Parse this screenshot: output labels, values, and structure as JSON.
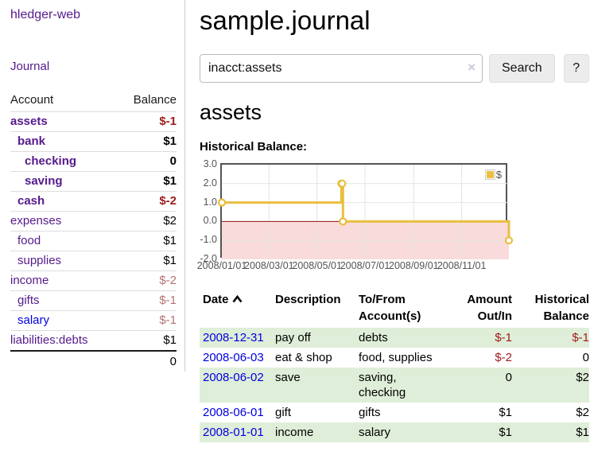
{
  "app": {
    "brand": "hledger-web"
  },
  "sidebar": {
    "nav": {
      "journal_label": "Journal"
    },
    "accounts": {
      "headers": {
        "account": "Account",
        "balance": "Balance"
      },
      "rows": [
        {
          "name": "assets",
          "depth": 1,
          "bold": true,
          "balance": "$-1",
          "neg": "neg-strong",
          "link": "purple"
        },
        {
          "name": "bank",
          "depth": 2,
          "bold": true,
          "balance": "$1",
          "neg": "",
          "link": "purple"
        },
        {
          "name": "checking",
          "depth": 3,
          "bold": true,
          "balance": "0",
          "neg": "",
          "link": "purple"
        },
        {
          "name": "saving",
          "depth": 3,
          "bold": true,
          "balance": "$1",
          "neg": "",
          "link": "purple"
        },
        {
          "name": "cash",
          "depth": 2,
          "bold": true,
          "balance": "$-2",
          "neg": "neg-strong",
          "link": "purple"
        },
        {
          "name": "expenses",
          "depth": 1,
          "bold": false,
          "balance": "$2",
          "neg": "",
          "link": "purple"
        },
        {
          "name": "food",
          "depth": 2,
          "bold": false,
          "balance": "$1",
          "neg": "",
          "link": "purple"
        },
        {
          "name": "supplies",
          "depth": 2,
          "bold": false,
          "balance": "$1",
          "neg": "",
          "link": "purple"
        },
        {
          "name": "income",
          "depth": 1,
          "bold": false,
          "balance": "$-2",
          "neg": "neg-soft",
          "link": "purple"
        },
        {
          "name": "gifts",
          "depth": 2,
          "bold": false,
          "balance": "$-1",
          "neg": "neg-soft",
          "link": "purple"
        },
        {
          "name": "salary",
          "depth": 2,
          "bold": false,
          "balance": "$-1",
          "neg": "neg-soft",
          "link": "blue"
        },
        {
          "name": "liabilities:debts",
          "depth": 1,
          "bold": false,
          "balance": "$1",
          "neg": "",
          "link": "purple"
        }
      ],
      "total": "0"
    }
  },
  "header": {
    "title": "sample.journal"
  },
  "search": {
    "value": "inacct:assets",
    "clear_icon": "×",
    "button_label": "Search",
    "help_label": "?"
  },
  "account_page": {
    "title": "assets",
    "chart_label": "Historical Balance:"
  },
  "chart_data": {
    "type": "line",
    "style": "step",
    "title": "Historical Balance",
    "series": [
      {
        "name": "$",
        "color": "#e8bf40",
        "points": [
          {
            "x": "2008-01-01",
            "y": 1
          },
          {
            "x": "2008-06-01",
            "y": 2
          },
          {
            "x": "2008-06-02",
            "y": 2
          },
          {
            "x": "2008-06-03",
            "y": 0
          },
          {
            "x": "2008-12-31",
            "y": -1
          }
        ]
      }
    ],
    "xrange": [
      "2008-01-01",
      "2008-12-31"
    ],
    "ylim": [
      -2,
      3
    ],
    "yticks": [
      {
        "label": "3.0",
        "value": 3
      },
      {
        "label": "2.0",
        "value": 2
      },
      {
        "label": "1.0",
        "value": 1
      },
      {
        "label": "0.0",
        "value": 0
      },
      {
        "label": "-1.0",
        "value": -1
      },
      {
        "label": "-2.0",
        "value": -2
      }
    ],
    "xticks": [
      {
        "label": "2008/01/01",
        "date": "2008-01-01"
      },
      {
        "label": "2008/03/01",
        "date": "2008-03-01"
      },
      {
        "label": "2008/05/01",
        "date": "2008-05-01"
      },
      {
        "label": "2008/07/01",
        "date": "2008-07-01"
      },
      {
        "label": "2008/09/01",
        "date": "2008-09-01"
      },
      {
        "label": "2008/11/01",
        "date": "2008-11-01"
      }
    ],
    "legend": {
      "position": "top-right",
      "label": "$"
    },
    "grid": true,
    "negative_fill": "#fadbdb",
    "zero_line_color": "#8c1515",
    "grid_color": "#e4e4e4",
    "border_color": "#545454"
  },
  "register": {
    "headers": {
      "date": "Date",
      "description": "Description",
      "accounts": "To/From\nAccount(s)",
      "amount": "Amount\nOut/In",
      "balance": "Historical\nBalance"
    },
    "rows": [
      {
        "date": "2008-12-31",
        "description": "pay off",
        "accounts": "debts",
        "amount": "$-1",
        "amount_neg": true,
        "balance": "$-1",
        "balance_neg": true,
        "shaded": true
      },
      {
        "date": "2008-06-03",
        "description": "eat & shop",
        "accounts": "food, supplies",
        "amount": "$-2",
        "amount_neg": true,
        "balance": "0",
        "balance_neg": false,
        "shaded": false
      },
      {
        "date": "2008-06-02",
        "description": "save",
        "accounts": "saving,\nchecking",
        "amount": "0",
        "amount_neg": false,
        "balance": "$2",
        "balance_neg": false,
        "shaded": true
      },
      {
        "date": "2008-06-01",
        "description": "gift",
        "accounts": "gifts",
        "amount": "$1",
        "amount_neg": false,
        "balance": "$2",
        "balance_neg": false,
        "shaded": false
      },
      {
        "date": "2008-01-01",
        "description": "income",
        "accounts": "salary",
        "amount": "$1",
        "amount_neg": false,
        "balance": "$1",
        "balance_neg": false,
        "shaded": true
      }
    ]
  }
}
